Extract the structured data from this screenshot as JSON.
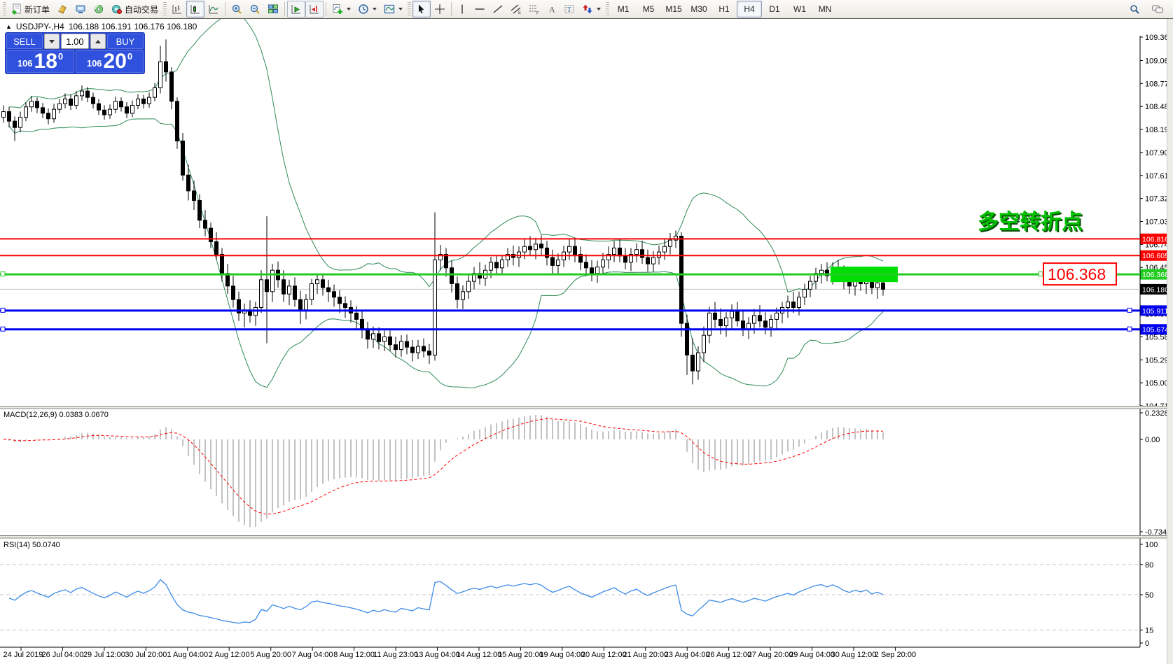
{
  "icons": {
    "collapse_up": "▲"
  },
  "toolbar": {
    "new_order_label": "新订单",
    "autotrade_label": "自动交易",
    "timeframes": [
      "M1",
      "M5",
      "M15",
      "M30",
      "H1",
      "H4",
      "D1",
      "W1",
      "MN"
    ],
    "active_timeframe": "H4"
  },
  "title": {
    "symbol_period": "USDJPY-,H4",
    "ohlc": "106.188 106.191 106.176 106.180"
  },
  "trade_panel": {
    "sell_label": "SELL",
    "buy_label": "BUY",
    "volume": "1.00",
    "sell_price_small": "106",
    "sell_price_big": "18",
    "sell_price_sup": "0",
    "buy_price_small": "106",
    "buy_price_big": "20",
    "buy_price_sup": "0"
  },
  "annotations": {
    "turning_point_text": "多空转折点",
    "price_callout": "106.368"
  },
  "chart_data": {
    "type": "candlestick",
    "symbol": "USDJPY",
    "period": "H4",
    "colors": {
      "bull": "#ffffff",
      "bear": "#000000",
      "wick": "#000000",
      "bollinger": "#2e8b57",
      "macd_hist": "#9a9a9a",
      "macd_signal": "#ff0000",
      "rsi": "#3d8be8",
      "rsi_grid": "#c8c8c8",
      "level_red": "#ff0000",
      "level_blue": "#0000ee",
      "level_green": "#22cc22",
      "highlight": "#00dd00",
      "current_price_bg": "#000000",
      "annotation_green": "#00c000",
      "annotation_shadow": "#0a4f0a",
      "callout_red": "#ff0000"
    },
    "y_ticks": [
      109.36,
      109.065,
      108.775,
      108.485,
      108.195,
      107.905,
      107.615,
      107.325,
      107.035,
      106.745,
      106.455,
      106.165,
      105.87,
      105.58,
      105.29,
      105.0,
      104.71
    ],
    "x_labels": [
      "24 Jul 2019",
      "26 Jul 04:00",
      "29 Jul 12:00",
      "30 Jul 20:00",
      "1 Aug 04:00",
      "2 Aug 12:00",
      "5 Aug 20:00",
      "7 Aug 04:00",
      "8 Aug 12:00",
      "11 Aug 23:00",
      "13 Aug 04:00",
      "14 Aug 12:00",
      "15 Aug 20:00",
      "19 Aug 04:00",
      "20 Aug 12:00",
      "21 Aug 20:00",
      "23 Aug 04:00",
      "26 Aug 12:00",
      "27 Aug 20:00",
      "29 Aug 04:00",
      "30 Aug 12:00",
      "2 Sep 20:00"
    ],
    "levels": [
      {
        "value": 106.816,
        "label": "106.816",
        "color": "#ff0000",
        "width": 2,
        "handles": false,
        "rhx": 1610
      },
      {
        "value": 106.605,
        "label": "106.605",
        "color": "#ff0000",
        "width": 2,
        "handles": false,
        "rhx": 1610
      },
      {
        "value": 106.368,
        "label": "106.368",
        "color": "#22cc22",
        "width": 3,
        "handles": true,
        "rhx": 1483
      },
      {
        "value": 105.911,
        "label": "105.911",
        "color": "#0000ee",
        "width": 3,
        "handles": true,
        "rhx": 1610
      },
      {
        "value": 105.674,
        "label": "105.674",
        "color": "#0000ee",
        "width": 3,
        "handles": true,
        "rhx": 1610
      }
    ],
    "current_price": 106.18,
    "current_price_label": "106.180",
    "highlight_box": {
      "bar_start": 148,
      "bar_end": 159,
      "price_top": 106.465,
      "price_bottom": 106.27
    },
    "macd": {
      "label": "MACD(12,26,9) 0.0383 0.0670",
      "params": [
        12,
        26,
        9
      ],
      "main": 0.0383,
      "signal": 0.067,
      "ymax": 0.2328,
      "ymin": -0.7342,
      "yticks": [
        "0.2328",
        "0.00",
        "-0.7342"
      ]
    },
    "rsi": {
      "label": "RSI(14) 50.0740",
      "period": 14,
      "value": 50.074,
      "levels": [
        80,
        50,
        15
      ],
      "yticks": [
        "100",
        "80",
        "50",
        "15",
        "0"
      ]
    },
    "candles": [
      [
        108.35,
        108.5,
        108.28,
        108.42
      ],
      [
        108.42,
        108.48,
        108.22,
        108.3
      ],
      [
        108.3,
        108.36,
        108.05,
        108.22
      ],
      [
        108.22,
        108.42,
        108.16,
        108.35
      ],
      [
        108.35,
        108.54,
        108.3,
        108.48
      ],
      [
        108.48,
        108.62,
        108.42,
        108.55
      ],
      [
        108.55,
        108.6,
        108.4,
        108.47
      ],
      [
        108.47,
        108.53,
        108.34,
        108.4
      ],
      [
        108.4,
        108.46,
        108.26,
        108.33
      ],
      [
        108.33,
        108.52,
        108.28,
        108.45
      ],
      [
        108.45,
        108.58,
        108.4,
        108.52
      ],
      [
        108.52,
        108.65,
        108.46,
        108.58
      ],
      [
        108.58,
        108.64,
        108.44,
        108.5
      ],
      [
        108.5,
        108.68,
        108.45,
        108.62
      ],
      [
        108.62,
        108.75,
        108.56,
        108.68
      ],
      [
        108.68,
        108.73,
        108.54,
        108.6
      ],
      [
        108.6,
        108.66,
        108.46,
        108.52
      ],
      [
        108.52,
        108.58,
        108.38,
        108.44
      ],
      [
        108.44,
        108.5,
        108.32,
        108.38
      ],
      [
        108.38,
        108.51,
        108.33,
        108.45
      ],
      [
        108.45,
        108.61,
        108.4,
        108.55
      ],
      [
        108.55,
        108.6,
        108.42,
        108.48
      ],
      [
        108.48,
        108.54,
        108.34,
        108.4
      ],
      [
        108.4,
        108.56,
        108.35,
        108.5
      ],
      [
        108.5,
        108.64,
        108.45,
        108.58
      ],
      [
        108.58,
        108.63,
        108.46,
        108.52
      ],
      [
        108.52,
        108.66,
        108.47,
        108.6
      ],
      [
        108.6,
        108.78,
        108.55,
        108.72
      ],
      [
        108.72,
        109.25,
        108.65,
        109.05
      ],
      [
        109.05,
        109.33,
        108.8,
        108.92
      ],
      [
        108.92,
        108.98,
        108.45,
        108.55
      ],
      [
        108.55,
        108.6,
        107.95,
        108.05
      ],
      [
        108.05,
        108.15,
        107.55,
        107.62
      ],
      [
        107.62,
        107.75,
        107.3,
        107.42
      ],
      [
        107.42,
        107.55,
        107.18,
        107.3
      ],
      [
        107.3,
        107.38,
        106.95,
        107.05
      ],
      [
        107.05,
        107.18,
        106.85,
        106.95
      ],
      [
        106.95,
        107.02,
        106.7,
        106.78
      ],
      [
        106.78,
        106.9,
        106.55,
        106.62
      ],
      [
        106.62,
        106.7,
        106.28,
        106.38
      ],
      [
        106.38,
        106.5,
        106.12,
        106.22
      ],
      [
        106.22,
        106.35,
        105.95,
        106.05
      ],
      [
        106.05,
        106.15,
        105.78,
        105.88
      ],
      [
        105.88,
        106.0,
        105.7,
        105.92
      ],
      [
        105.92,
        106.04,
        105.76,
        105.85
      ],
      [
        105.85,
        106.02,
        105.72,
        105.95
      ],
      [
        105.95,
        106.42,
        105.88,
        106.3
      ],
      [
        106.3,
        107.1,
        105.5,
        106.15
      ],
      [
        106.15,
        106.5,
        106.02,
        106.42
      ],
      [
        106.42,
        106.53,
        106.2,
        106.3
      ],
      [
        106.3,
        106.42,
        106.02,
        106.12
      ],
      [
        106.12,
        106.3,
        105.98,
        106.22
      ],
      [
        106.22,
        106.33,
        105.96,
        106.05
      ],
      [
        106.05,
        106.16,
        105.74,
        105.92
      ],
      [
        105.92,
        106.12,
        105.8,
        106.05
      ],
      [
        106.05,
        106.31,
        105.98,
        106.25
      ],
      [
        106.25,
        106.38,
        106.12,
        106.3
      ],
      [
        106.3,
        106.38,
        106.1,
        106.2
      ],
      [
        106.2,
        106.3,
        106.02,
        106.15
      ],
      [
        106.15,
        106.24,
        105.96,
        106.08
      ],
      [
        106.08,
        106.17,
        105.88,
        106.0
      ],
      [
        106.0,
        106.09,
        105.82,
        105.95
      ],
      [
        105.95,
        106.04,
        105.76,
        105.88
      ],
      [
        105.88,
        105.97,
        105.68,
        105.8
      ],
      [
        105.8,
        105.9,
        105.56,
        105.68
      ],
      [
        105.68,
        105.77,
        105.43,
        105.55
      ],
      [
        105.55,
        105.71,
        105.44,
        105.62
      ],
      [
        105.62,
        105.7,
        105.42,
        105.52
      ],
      [
        105.52,
        105.66,
        105.4,
        105.58
      ],
      [
        105.58,
        105.66,
        105.4,
        105.48
      ],
      [
        105.48,
        105.58,
        105.32,
        105.42
      ],
      [
        105.42,
        105.6,
        105.33,
        105.52
      ],
      [
        105.52,
        105.61,
        105.36,
        105.45
      ],
      [
        105.45,
        105.54,
        105.27,
        105.38
      ],
      [
        105.38,
        105.54,
        105.3,
        105.46
      ],
      [
        105.46,
        105.56,
        105.32,
        105.4
      ],
      [
        105.4,
        105.49,
        105.24,
        105.35
      ],
      [
        105.35,
        107.15,
        105.28,
        106.55
      ],
      [
        106.55,
        106.74,
        106.42,
        106.62
      ],
      [
        106.62,
        106.7,
        106.34,
        106.45
      ],
      [
        106.45,
        106.54,
        106.14,
        106.25
      ],
      [
        106.25,
        106.34,
        105.94,
        106.05
      ],
      [
        106.05,
        106.23,
        105.93,
        106.15
      ],
      [
        106.15,
        106.36,
        106.06,
        106.28
      ],
      [
        106.28,
        106.46,
        106.18,
        106.38
      ],
      [
        106.38,
        106.52,
        106.24,
        106.32
      ],
      [
        106.32,
        106.49,
        106.22,
        106.42
      ],
      [
        106.42,
        106.59,
        106.32,
        106.52
      ],
      [
        106.52,
        106.6,
        106.36,
        106.45
      ],
      [
        106.45,
        106.61,
        106.36,
        106.55
      ],
      [
        106.55,
        106.7,
        106.46,
        106.62
      ],
      [
        106.62,
        106.73,
        106.48,
        106.58
      ],
      [
        106.58,
        106.72,
        106.46,
        106.65
      ],
      [
        106.65,
        106.81,
        106.56,
        106.72
      ],
      [
        106.72,
        106.85,
        106.6,
        106.68
      ],
      [
        106.68,
        106.83,
        106.56,
        106.75
      ],
      [
        106.75,
        106.86,
        106.6,
        106.7
      ],
      [
        106.7,
        106.79,
        106.48,
        106.58
      ],
      [
        106.58,
        106.68,
        106.38,
        106.48
      ],
      [
        106.48,
        106.63,
        106.36,
        106.55
      ],
      [
        106.55,
        106.73,
        106.46,
        106.65
      ],
      [
        106.65,
        106.81,
        106.55,
        106.72
      ],
      [
        106.72,
        106.83,
        106.52,
        106.62
      ],
      [
        106.62,
        106.72,
        106.42,
        106.52
      ],
      [
        106.52,
        106.62,
        106.35,
        106.45
      ],
      [
        106.45,
        106.55,
        106.28,
        106.38
      ],
      [
        106.38,
        106.54,
        106.26,
        106.46
      ],
      [
        106.46,
        106.64,
        106.36,
        106.55
      ],
      [
        106.55,
        106.72,
        106.44,
        106.62
      ],
      [
        106.62,
        106.79,
        106.52,
        106.7
      ],
      [
        106.7,
        106.82,
        106.52,
        106.6
      ],
      [
        106.6,
        106.7,
        106.43,
        106.52
      ],
      [
        106.52,
        106.7,
        106.41,
        106.62
      ],
      [
        106.62,
        106.76,
        106.52,
        106.68
      ],
      [
        106.68,
        106.79,
        106.5,
        106.58
      ],
      [
        106.58,
        106.68,
        106.4,
        106.5
      ],
      [
        106.5,
        106.66,
        106.4,
        106.58
      ],
      [
        106.58,
        106.73,
        106.49,
        106.65
      ],
      [
        106.65,
        106.81,
        106.55,
        106.72
      ],
      [
        106.72,
        106.89,
        106.62,
        106.8
      ],
      [
        106.8,
        106.92,
        106.7,
        106.85
      ],
      [
        106.85,
        106.9,
        105.58,
        105.75
      ],
      [
        105.75,
        105.86,
        105.1,
        105.35
      ],
      [
        105.35,
        105.56,
        104.98,
        105.15
      ],
      [
        105.15,
        105.46,
        105.04,
        105.38
      ],
      [
        105.38,
        105.71,
        105.26,
        105.6
      ],
      [
        105.6,
        105.96,
        105.5,
        105.88
      ],
      [
        105.88,
        106.02,
        105.69,
        105.8
      ],
      [
        105.8,
        105.94,
        105.61,
        105.72
      ],
      [
        105.72,
        105.89,
        105.58,
        105.82
      ],
      [
        105.82,
        105.99,
        105.68,
        105.9
      ],
      [
        105.9,
        106.02,
        105.71,
        105.78
      ],
      [
        105.78,
        105.9,
        105.59,
        105.68
      ],
      [
        105.68,
        105.83,
        105.55,
        105.75
      ],
      [
        105.75,
        105.93,
        105.62,
        105.85
      ],
      [
        105.85,
        105.98,
        105.7,
        105.78
      ],
      [
        105.78,
        105.89,
        105.61,
        105.7
      ],
      [
        105.7,
        105.86,
        105.58,
        105.8
      ],
      [
        105.8,
        105.95,
        105.68,
        105.88
      ],
      [
        105.88,
        106.02,
        105.75,
        105.95
      ],
      [
        105.95,
        106.1,
        105.82,
        106.02
      ],
      [
        106.02,
        106.15,
        105.88,
        105.95
      ],
      [
        105.95,
        106.15,
        105.85,
        106.08
      ],
      [
        106.08,
        106.25,
        105.98,
        106.18
      ],
      [
        106.18,
        106.35,
        106.08,
        106.28
      ],
      [
        106.28,
        106.45,
        106.18,
        106.38
      ],
      [
        106.38,
        106.5,
        106.25,
        106.42
      ],
      [
        106.42,
        106.52,
        106.28,
        106.35
      ],
      [
        106.35,
        106.52,
        106.24,
        106.45
      ],
      [
        106.45,
        106.55,
        106.3,
        106.38
      ],
      [
        106.38,
        106.48,
        106.18,
        106.28
      ],
      [
        106.28,
        106.4,
        106.12,
        106.22
      ],
      [
        106.22,
        106.38,
        106.1,
        106.3
      ],
      [
        106.3,
        106.42,
        106.16,
        106.25
      ],
      [
        106.25,
        106.4,
        106.12,
        106.32
      ],
      [
        106.32,
        106.4,
        106.12,
        106.2
      ],
      [
        106.2,
        106.34,
        106.06,
        106.26
      ],
      [
        106.26,
        106.34,
        106.1,
        106.18
      ]
    ]
  }
}
